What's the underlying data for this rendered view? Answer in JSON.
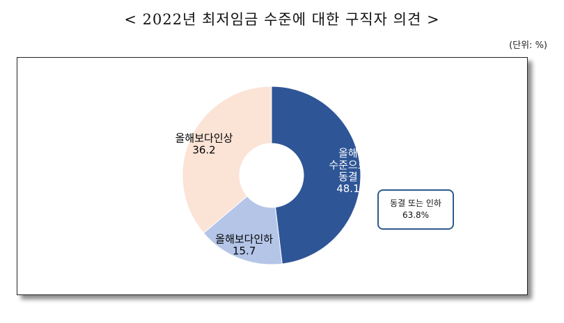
{
  "title": "< 2022년 최저임금 수준에 대한 구직자 의견 >",
  "unit": "(단위: %)",
  "callout": {
    "line1": "동결 또는 인하",
    "line2": "63.8%"
  },
  "chart_data": {
    "type": "pie",
    "donut": true,
    "start_angle_deg": 0,
    "direction": "clockwise",
    "slices": [
      {
        "label_lines": [
          "올해",
          "수준으로",
          "동결"
        ],
        "value": 48.1,
        "color": "#2e5596",
        "text_color": "#ffffff"
      },
      {
        "label_lines": [
          "올해보다인하"
        ],
        "value": 15.7,
        "color": "#b4c5e8",
        "text_color": "#000000"
      },
      {
        "label_lines": [
          "올해보다인상"
        ],
        "value": 36.2,
        "color": "#fbe3d6",
        "text_color": "#000000"
      }
    ]
  }
}
